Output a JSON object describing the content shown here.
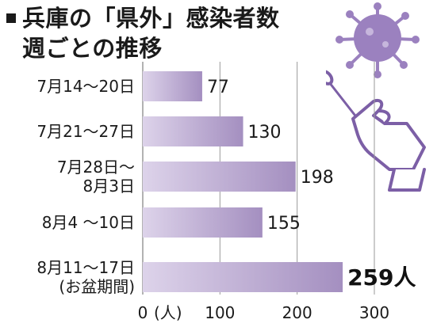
{
  "title": {
    "line1": "兵庫の「県外」感染者数",
    "line2": "週ごとの推移"
  },
  "icons": [
    "virus-icon",
    "swab-hand-icon"
  ],
  "colors": {
    "bar": "#a48fc0",
    "bar_light": "#ddd3ea",
    "virus": "#9b81bf",
    "grid": "#999999"
  },
  "chart_data": {
    "type": "bar",
    "orientation": "horizontal",
    "categories": [
      [
        "7月14～20日"
      ],
      [
        "7月21～27日"
      ],
      [
        "7月28日～",
        "8月3日"
      ],
      [
        "8月4 ～10日"
      ],
      [
        "8月11～17日",
        "(お盆期間)"
      ]
    ],
    "values": [
      77,
      130,
      198,
      155,
      259
    ],
    "value_labels": [
      "77",
      "130",
      "198",
      "155",
      "259人"
    ],
    "xlim": [
      0,
      300
    ],
    "ticks": [
      0,
      100,
      200,
      300
    ],
    "tick_labels": [
      "0",
      "100",
      "200",
      "300"
    ],
    "unit_label": "(人)",
    "grid": true
  }
}
